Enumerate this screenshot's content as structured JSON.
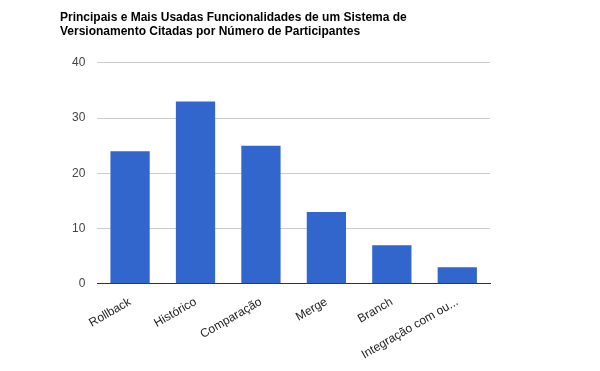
{
  "chart_data": {
    "type": "bar",
    "title": [
      "Principais e Mais Usadas Funcionalidades de um Sistema de",
      "Versionamento Citadas por Número de Participantes"
    ],
    "categories": [
      "Rollback",
      "Histórico",
      "Comparação",
      "Merge",
      "Branch",
      "Integração com ou..."
    ],
    "values": [
      24,
      33,
      25,
      13,
      7,
      3
    ],
    "color": "#3366cc",
    "ylim": [
      0,
      40
    ],
    "yticks": [
      0,
      10,
      20,
      30,
      40
    ],
    "grid": true
  }
}
